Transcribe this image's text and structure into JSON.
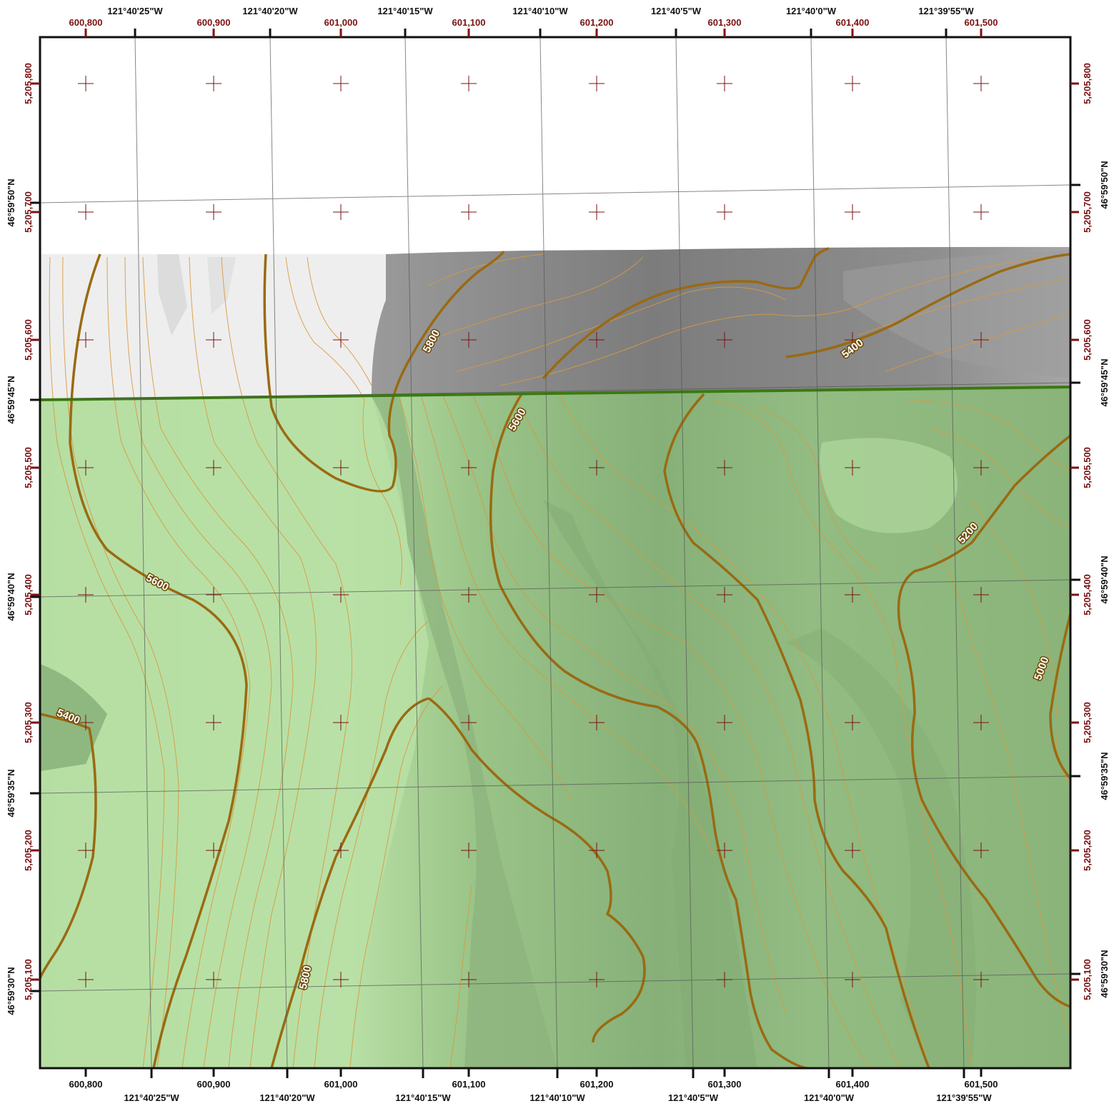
{
  "utm_easting_labels": [
    "600,800",
    "600,900",
    "601,000",
    "601,100",
    "601,200",
    "601,300",
    "601,400",
    "601,500"
  ],
  "utm_northing_labels": [
    "5,205,800",
    "5,205,700",
    "5,205,600",
    "5,205,500",
    "5,205,400",
    "5,205,300",
    "5,205,200",
    "5,205,100"
  ],
  "longitude_labels": [
    "121°40'25\"W",
    "121°40'20\"W",
    "121°40'15\"W",
    "121°40'10\"W",
    "121°40'5\"W",
    "121°40'0\"W",
    "121°39'55\"W"
  ],
  "latitude_labels": [
    "46°59'50\"N",
    "46°59'45\"N",
    "46°59'40\"N",
    "46°59'35\"N",
    "46°59'30\"N"
  ],
  "contour_labels": {
    "c5800_top": "5800",
    "c5400_top": "5400",
    "c5600_mid": "5600",
    "c5600_left": "5600",
    "c5200": "5200",
    "c5400_left": "5400",
    "c5000": "5000",
    "c5800_bottom": "5800"
  },
  "colors": {
    "utm_text": "#7a1212",
    "geo_text": "#111111",
    "index_contour": "#9a6a12",
    "intermediate_contour": "#d89a40",
    "boundary": "#3a7a10",
    "vegetation": "#b4dca0",
    "shaded_relief": "#8a8a8a"
  }
}
